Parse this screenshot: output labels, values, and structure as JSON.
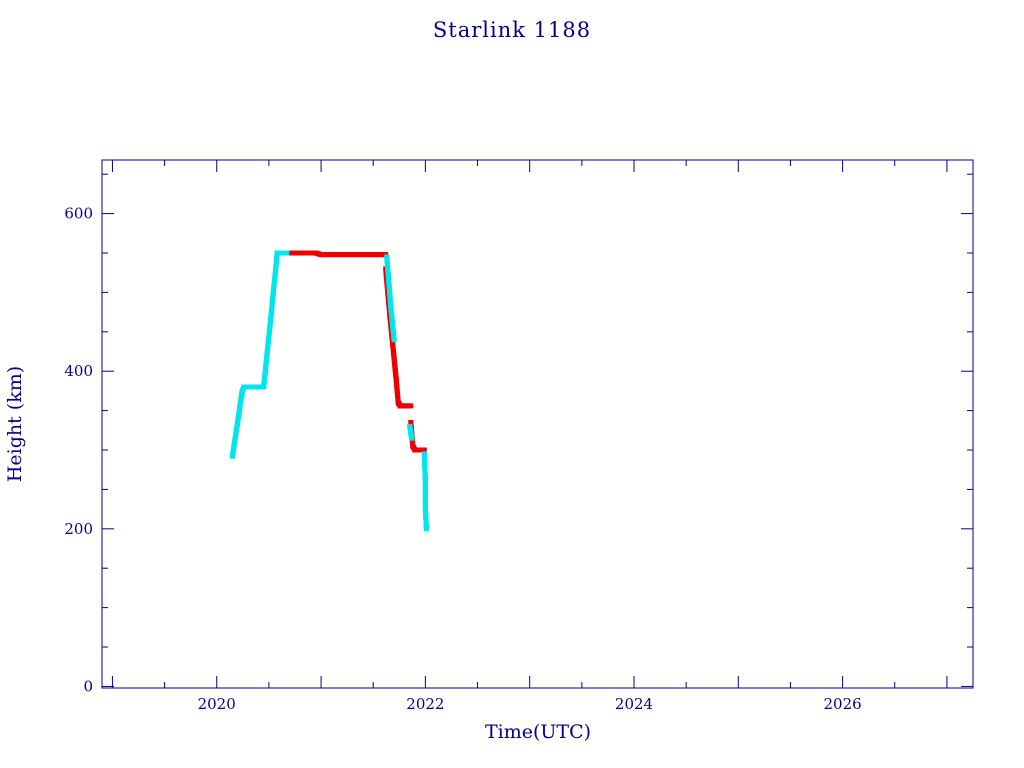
{
  "chart_data": {
    "type": "scatter",
    "title": "Starlink 1188",
    "xlabel": "Time(UTC)",
    "ylabel": "Height (km)",
    "xlim": [
      2018.9,
      2027.25
    ],
    "ylim": [
      -2,
      668
    ],
    "x_ticks": [
      "2020",
      "2022",
      "2024",
      "2026"
    ],
    "y_ticks": [
      "0",
      "200",
      "400",
      "600"
    ],
    "grid": false,
    "legend": "none",
    "colors": {
      "axis": "#00008b",
      "cyan": "#00e5ee",
      "red": "#ee0000"
    },
    "segments": [
      {
        "color": "cyan",
        "points": [
          [
            2020.15,
            292
          ],
          [
            2020.2,
            335
          ],
          [
            2020.24,
            372
          ],
          [
            2020.26,
            380
          ]
        ]
      },
      {
        "color": "cyan",
        "points": [
          [
            2020.26,
            380
          ],
          [
            2020.45,
            380
          ]
        ]
      },
      {
        "color": "cyan",
        "points": [
          [
            2020.45,
            380
          ],
          [
            2020.52,
            470
          ],
          [
            2020.58,
            550
          ]
        ]
      },
      {
        "color": "cyan",
        "points": [
          [
            2020.58,
            550
          ],
          [
            2020.72,
            550
          ]
        ]
      },
      {
        "color": "red",
        "points": [
          [
            2020.72,
            550
          ],
          [
            2020.95,
            550
          ],
          [
            2021.0,
            548
          ],
          [
            2021.62,
            548
          ]
        ]
      },
      {
        "color": "red",
        "points": [
          [
            2021.62,
            530
          ],
          [
            2021.66,
            470
          ],
          [
            2021.69,
            430
          ],
          [
            2021.72,
            390
          ],
          [
            2021.74,
            360
          ],
          [
            2021.76,
            356
          ]
        ]
      },
      {
        "color": "red",
        "points": [
          [
            2021.76,
            356
          ],
          [
            2021.86,
            356
          ]
        ]
      },
      {
        "color": "red",
        "points": [
          [
            2021.86,
            335
          ],
          [
            2021.88,
            305
          ],
          [
            2021.9,
            300
          ]
        ]
      },
      {
        "color": "red",
        "points": [
          [
            2021.9,
            300
          ],
          [
            2021.99,
            300
          ]
        ]
      },
      {
        "color": "cyan",
        "points": [
          [
            2021.63,
            545
          ],
          [
            2021.67,
            480
          ],
          [
            2021.7,
            440
          ]
        ]
      },
      {
        "color": "cyan",
        "points": [
          [
            2021.85,
            330
          ],
          [
            2021.87,
            315
          ]
        ]
      },
      {
        "color": "cyan",
        "points": [
          [
            2021.99,
            295
          ],
          [
            2022.0,
            260
          ],
          [
            2022.0,
            225
          ],
          [
            2022.01,
            200
          ]
        ]
      }
    ]
  }
}
